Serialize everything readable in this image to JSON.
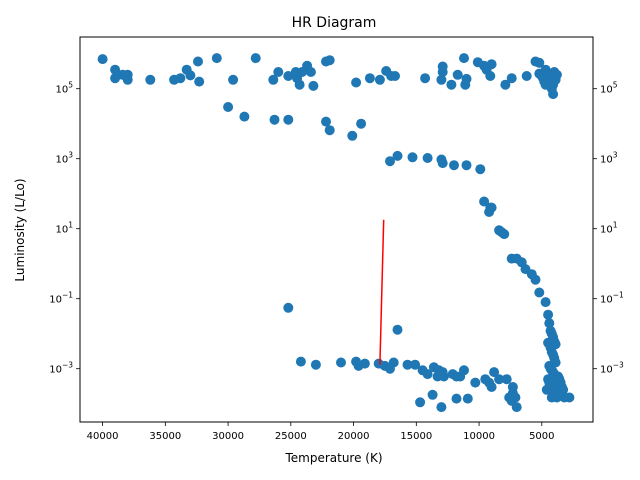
{
  "chart_data": {
    "type": "scatter",
    "title": "HR Diagram",
    "xlabel": "Temperature (K)",
    "ylabel": "Luminosity (L/Lo)",
    "x_scale": "linear",
    "y_scale": "log",
    "x_inverted": true,
    "xlim": [
      41800,
      920
    ],
    "ylim": [
      3e-05,
      3000000
    ],
    "x_ticks": [
      40000,
      35000,
      30000,
      25000,
      20000,
      15000,
      10000,
      5000
    ],
    "x_tick_labels": [
      "40000",
      "35000",
      "30000",
      "25000",
      "20000",
      "15000",
      "10000",
      "5000"
    ],
    "y_ticks": [
      0.001,
      0.1,
      10,
      1000,
      100000
    ],
    "y_tick_labels": [
      {
        "base": "10",
        "exp": "−3"
      },
      {
        "base": "10",
        "exp": "−1"
      },
      {
        "base": "10",
        "exp": "1"
      },
      {
        "base": "10",
        "exp": "3"
      },
      {
        "base": "10",
        "exp": "5"
      }
    ],
    "right_axis_ticks": true,
    "grid": false,
    "marker_color": "#1f77b4",
    "line_color": "#ff0000",
    "series": [
      {
        "type": "scatter",
        "points": [
          [
            40000,
            700000
          ],
          [
            39000,
            350000
          ],
          [
            39000,
            200000
          ],
          [
            38400,
            250000
          ],
          [
            38000,
            250000
          ],
          [
            38000,
            180000
          ],
          [
            36200,
            180000
          ],
          [
            34300,
            180000
          ],
          [
            33800,
            200000
          ],
          [
            33300,
            350000
          ],
          [
            33000,
            240000
          ],
          [
            32400,
            600000
          ],
          [
            32300,
            160000
          ],
          [
            30900,
            750000
          ],
          [
            29600,
            180000
          ],
          [
            27800,
            750000
          ],
          [
            26400,
            180000
          ],
          [
            26000,
            300000
          ],
          [
            25200,
            230000
          ],
          [
            24600,
            300000
          ],
          [
            24500,
            200000
          ],
          [
            24300,
            130000
          ],
          [
            24100,
            300000
          ],
          [
            23700,
            450000
          ],
          [
            23400,
            300000
          ],
          [
            23200,
            120000
          ],
          [
            22200,
            600000
          ],
          [
            21900,
            650000
          ],
          [
            19800,
            150000
          ],
          [
            18700,
            200000
          ],
          [
            17900,
            180000
          ],
          [
            17400,
            320000
          ],
          [
            17000,
            230000
          ],
          [
            16700,
            230000
          ],
          [
            14300,
            200000
          ],
          [
            13000,
            180000
          ],
          [
            12900,
            300000
          ],
          [
            12900,
            430000
          ],
          [
            12200,
            130000
          ],
          [
            11700,
            250000
          ],
          [
            11100,
            130000
          ],
          [
            11000,
            190000
          ],
          [
            11200,
            750000
          ],
          [
            10100,
            570000
          ],
          [
            9600,
            450000
          ],
          [
            9400,
            350000
          ],
          [
            9100,
            230000
          ],
          [
            9000,
            500000
          ],
          [
            7900,
            130000
          ],
          [
            7400,
            200000
          ],
          [
            6200,
            230000
          ],
          [
            5500,
            600000
          ],
          [
            5200,
            550000
          ],
          [
            5200,
            270000
          ],
          [
            5000,
            230000
          ],
          [
            4900,
            200000
          ],
          [
            4800,
            160000
          ],
          [
            4700,
            350000
          ],
          [
            4700,
            130000
          ],
          [
            4600,
            300000
          ],
          [
            4500,
            250000
          ],
          [
            4400,
            180000
          ],
          [
            4300,
            220000
          ],
          [
            4300,
            150000
          ],
          [
            4200,
            100000
          ],
          [
            4100,
            130000
          ],
          [
            4100,
            70000
          ],
          [
            4000,
            300000
          ],
          [
            3900,
            180000
          ],
          [
            3800,
            250000
          ],
          [
            30000,
            30000
          ],
          [
            28700,
            16000
          ],
          [
            26300,
            13000
          ],
          [
            25200,
            13000
          ],
          [
            22200,
            11500
          ],
          [
            21900,
            6500
          ],
          [
            20100,
            4500
          ],
          [
            19400,
            10000
          ],
          [
            16500,
            1200
          ],
          [
            17100,
            850
          ],
          [
            15300,
            1100
          ],
          [
            14100,
            1050
          ],
          [
            13000,
            950
          ],
          [
            12900,
            750
          ],
          [
            12000,
            650
          ],
          [
            11000,
            650
          ],
          [
            9900,
            500
          ],
          [
            9600,
            60
          ],
          [
            9200,
            30
          ],
          [
            9100,
            40
          ],
          [
            9000,
            40
          ],
          [
            8400,
            9
          ],
          [
            8200,
            8
          ],
          [
            8000,
            7
          ],
          [
            7400,
            1.4
          ],
          [
            7000,
            1.4
          ],
          [
            6600,
            1.1
          ],
          [
            6300,
            0.7
          ],
          [
            5800,
            0.5
          ],
          [
            5500,
            0.35
          ],
          [
            5200,
            0.15
          ],
          [
            4700,
            0.08
          ],
          [
            4500,
            0.035
          ],
          [
            4400,
            0.02
          ],
          [
            4300,
            0.012
          ],
          [
            4200,
            0.01
          ],
          [
            4100,
            0.008
          ],
          [
            4000,
            0.006
          ],
          [
            3900,
            0.005
          ],
          [
            4500,
            0.0055
          ],
          [
            4300,
            0.004
          ],
          [
            4200,
            0.003
          ],
          [
            4100,
            0.0025
          ],
          [
            4000,
            0.002
          ],
          [
            3900,
            0.0015
          ],
          [
            4400,
            0.0012
          ],
          [
            4300,
            0.001
          ],
          [
            4200,
            0.0009
          ],
          [
            4100,
            0.0008
          ],
          [
            4000,
            0.0007
          ],
          [
            3900,
            0.0006
          ],
          [
            4500,
            0.0005
          ],
          [
            4400,
            0.0004
          ],
          [
            4300,
            0.0003
          ],
          [
            4200,
            0.0003
          ],
          [
            4100,
            0.00025
          ],
          [
            4000,
            0.0002
          ],
          [
            3900,
            0.00018
          ],
          [
            4600,
            0.00025
          ],
          [
            3800,
            0.0004
          ],
          [
            3700,
            0.0006
          ],
          [
            3600,
            0.0005
          ],
          [
            3500,
            0.0004
          ],
          [
            3400,
            0.0003
          ],
          [
            3300,
            0.00025
          ],
          [
            3200,
            0.00015
          ],
          [
            2800,
            0.00015
          ],
          [
            3800,
            0.00015
          ],
          [
            4200,
            0.00015
          ],
          [
            25200,
            0.055
          ],
          [
            16500,
            0.013
          ],
          [
            24200,
            0.0016
          ],
          [
            23000,
            0.0013
          ],
          [
            21000,
            0.0015
          ],
          [
            19800,
            0.0016
          ],
          [
            19600,
            0.0012
          ],
          [
            19100,
            0.0014
          ],
          [
            18000,
            0.0014
          ],
          [
            17500,
            0.0012
          ],
          [
            17100,
            0.001
          ],
          [
            16800,
            0.0015
          ],
          [
            15700,
            0.0013
          ],
          [
            15100,
            0.0013
          ],
          [
            14500,
            0.0009
          ],
          [
            14100,
            0.0007
          ],
          [
            13600,
            0.0011
          ],
          [
            13300,
            0.0006
          ],
          [
            12800,
            0.0006
          ],
          [
            12100,
            0.0007
          ],
          [
            11200,
            0.0009
          ],
          [
            11500,
            0.0006
          ],
          [
            10300,
            0.0004
          ],
          [
            9500,
            0.0005
          ],
          [
            9000,
            0.0003
          ],
          [
            8800,
            0.0008
          ],
          [
            8400,
            0.0005
          ],
          [
            7800,
            0.0005
          ],
          [
            7600,
            0.00015
          ],
          [
            7400,
            0.00012
          ],
          [
            7300,
            0.0003
          ],
          [
            7100,
            0.00015
          ],
          [
            7000,
            8e-05
          ],
          [
            14700,
            0.00011
          ],
          [
            13700,
            0.00018
          ],
          [
            13000,
            8e-05
          ],
          [
            11800,
            0.00014
          ],
          [
            10900,
            0.00014
          ],
          [
            12900,
            0.0008
          ],
          [
            13200,
            0.0009
          ],
          [
            11800,
            0.0006
          ],
          [
            9200,
            0.0004
          ],
          [
            7300,
            0.0002
          ]
        ]
      },
      {
        "type": "line",
        "points": [
          [
            17900,
            0.0013
          ],
          [
            17600,
            18
          ]
        ]
      }
    ]
  }
}
